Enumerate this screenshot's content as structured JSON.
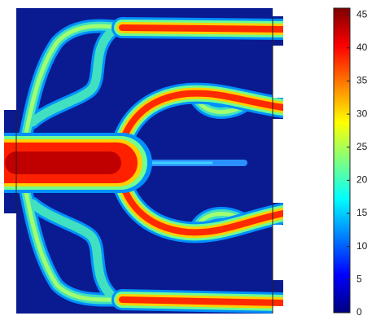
{
  "chart_data": {
    "type": "heatmap",
    "colorbar": {
      "lim": [
        0,
        46
      ],
      "ticks": [
        0,
        5,
        10,
        15,
        20,
        25,
        30,
        35,
        40,
        45
      ],
      "colormap": [
        "#00007f",
        "#0000ff",
        "#007fff",
        "#00ffff",
        "#7fff7f",
        "#ffff00",
        "#ff7f00",
        "#ff0000",
        "#7f0000"
      ]
    }
  }
}
